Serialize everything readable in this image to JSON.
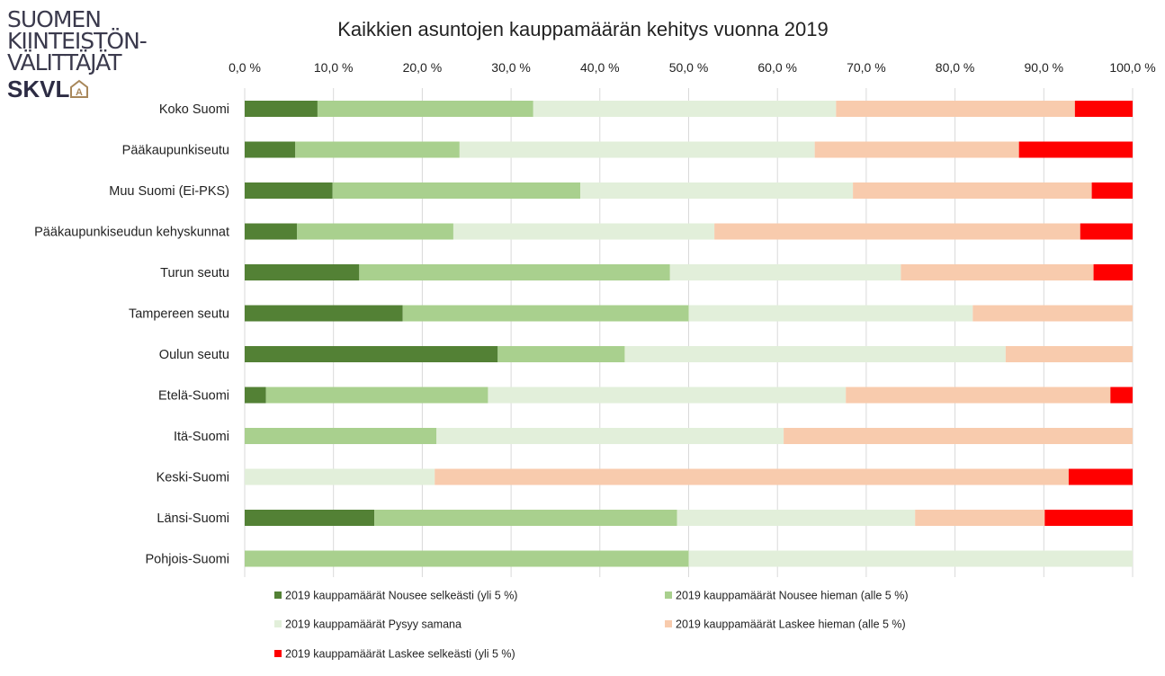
{
  "logo": {
    "lines": [
      "SUOMEN",
      "KIINTEISTÖN-",
      "VÄLITTÄJÄT"
    ],
    "brand": "SKVL",
    "emblem": "A"
  },
  "chart_data": {
    "type": "bar",
    "orientation": "horizontal",
    "stacked": "percent",
    "title": "Kaikkien asuntojen kauppamäärän kehitys vuonna 2019",
    "xlim": [
      0,
      100
    ],
    "x_ticks": [
      "0,0 %",
      "10,0 %",
      "20,0 %",
      "30,0 %",
      "40,0 %",
      "50,0 %",
      "60,0 %",
      "70,0 %",
      "80,0 %",
      "90,0 %",
      "100,0 %"
    ],
    "x_axis_position": "top",
    "grid": true,
    "legend_position": "bottom",
    "categories": [
      "Koko Suomi",
      "Pääkaupunkiseutu",
      "Muu Suomi (Ei-PKS)",
      "Pääkaupunkiseudun kehyskunnat",
      "Turun seutu",
      "Tampereen seutu",
      "Oulun seutu",
      "Etelä-Suomi",
      "Itä-Suomi",
      "Keski-Suomi",
      "Länsi-Suomi",
      "Pohjois-Suomi"
    ],
    "series": [
      {
        "name": "2019 kauppamäärät Nousee selkeästi (yli 5 %)",
        "color": "#538135",
        "values": [
          8.2,
          5.7,
          9.9,
          5.9,
          12.9,
          17.8,
          28.5,
          2.4,
          0,
          0,
          14.6,
          0
        ]
      },
      {
        "name": "2019 kauppamäärät Nousee hieman (alle 5 %)",
        "color": "#a9d08e",
        "values": [
          24.3,
          18.5,
          27.9,
          17.6,
          35.0,
          32.2,
          14.3,
          25.0,
          21.6,
          0,
          34.1,
          50.0
        ]
      },
      {
        "name": "2019 kauppamäärät Pysyy samana",
        "color": "#e2efda",
        "values": [
          34.1,
          40.0,
          30.7,
          29.4,
          26.0,
          32.0,
          42.9,
          40.3,
          39.1,
          21.4,
          26.8,
          50.0
        ]
      },
      {
        "name": "2019 kauppamäärät Laskee hieman (alle 5 %)",
        "color": "#f8cbad",
        "values": [
          26.9,
          23.0,
          26.9,
          41.2,
          21.7,
          18.0,
          14.3,
          29.8,
          39.3,
          71.4,
          14.6,
          0
        ]
      },
      {
        "name": "2019 kauppamäärät Laskee selkeästi (yli 5 %)",
        "color": "#ff0000",
        "values": [
          6.5,
          12.8,
          4.6,
          5.9,
          4.4,
          0,
          0,
          2.5,
          0,
          7.2,
          9.9,
          0
        ]
      }
    ]
  }
}
